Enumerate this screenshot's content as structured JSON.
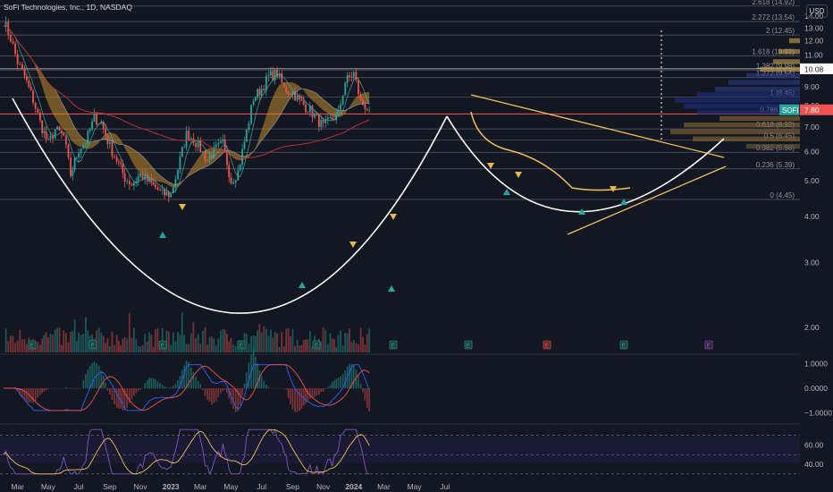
{
  "header": {
    "title": "SoFi Technologies, Inc., 1D, NASDAQ",
    "currency": "USD"
  },
  "colors": {
    "background": "#131722",
    "up": "#26a69a",
    "down": "#ef5350",
    "cup_line": "#ffffff",
    "trend_line": "#f0c05a",
    "fib_line": "#787b86",
    "sma_long": "#b5303a",
    "ema_ribbon": "#c28a2b"
  },
  "chart_data": [
    {
      "type": "candlestick",
      "title": "SoFi Technologies, Inc., 1D, NASDAQ",
      "x_tick_labels": [
        "Mar",
        "May",
        "Jul",
        "Sep",
        "Nov",
        "2023",
        "Mar",
        "May",
        "Jul",
        "Sep",
        "Nov",
        "2024",
        "Mar",
        "May",
        "Jul"
      ],
      "y_tick_labels": [
        "2.00",
        "3.00",
        "4.00",
        "5.00",
        "6.00",
        "7.00",
        "8.00",
        "9.00",
        "10.00",
        "11.00",
        "12.00",
        "13.00",
        "14.00"
      ],
      "ylim": [
        1.7,
        15.5
      ],
      "scale": "log",
      "fib_levels": [
        {
          "label": "0 (4.45)",
          "value": 4.45
        },
        {
          "label": "0.236 (5.39)",
          "value": 5.39
        },
        {
          "label": "0.382 (5.98)",
          "value": 5.98
        },
        {
          "label": "0.5 (6.45)",
          "value": 6.45
        },
        {
          "label": "0.618 (6.92)",
          "value": 6.92
        },
        {
          "label": "0.786 (7.6)",
          "value": 7.6
        },
        {
          "label": "1 (8.45)",
          "value": 8.45
        },
        {
          "label": "1.272 (9.54)",
          "value": 9.54
        },
        {
          "label": "1.382 (9.98)",
          "value": 9.98
        },
        {
          "label": "1.618 (10.92)",
          "value": 10.92
        },
        {
          "label": "2 (12.45)",
          "value": 12.45
        },
        {
          "label": "2.272 (13.54)",
          "value": 13.54
        },
        {
          "label": "2.618 (14.92)",
          "value": 14.92
        }
      ],
      "price_labels": [
        {
          "text": "10.08",
          "value": 10.08
        },
        {
          "text": "SOFI",
          "value": 7.8
        },
        {
          "text": "7.80",
          "value": 7.8
        }
      ],
      "price_series": [
        {
          "date": "2022-02-01",
          "close": 13.6
        },
        {
          "date": "2022-02-15",
          "close": 12.2
        },
        {
          "date": "2022-03-01",
          "close": 10.5
        },
        {
          "date": "2022-03-15",
          "close": 9.6
        },
        {
          "date": "2022-04-01",
          "close": 8.3
        },
        {
          "date": "2022-04-15",
          "close": 7.2
        },
        {
          "date": "2022-05-01",
          "close": 6.3
        },
        {
          "date": "2022-05-15",
          "close": 6.9
        },
        {
          "date": "2022-06-01",
          "close": 6.6
        },
        {
          "date": "2022-06-15",
          "close": 5.2
        },
        {
          "date": "2022-07-01",
          "close": 6.1
        },
        {
          "date": "2022-07-15",
          "close": 6.4
        },
        {
          "date": "2022-08-01",
          "close": 7.4
        },
        {
          "date": "2022-08-15",
          "close": 7.2
        },
        {
          "date": "2022-09-01",
          "close": 6.2
        },
        {
          "date": "2022-09-15",
          "close": 5.7
        },
        {
          "date": "2022-10-01",
          "close": 5.1
        },
        {
          "date": "2022-10-15",
          "close": 4.9
        },
        {
          "date": "2022-11-01",
          "close": 5.2
        },
        {
          "date": "2022-11-15",
          "close": 5.0
        },
        {
          "date": "2022-12-01",
          "close": 4.8
        },
        {
          "date": "2022-12-15",
          "close": 4.6
        },
        {
          "date": "2023-01-01",
          "close": 4.6
        },
        {
          "date": "2023-01-15",
          "close": 5.4
        },
        {
          "date": "2023-02-01",
          "close": 6.7
        },
        {
          "date": "2023-02-15",
          "close": 6.5
        },
        {
          "date": "2023-03-01",
          "close": 6.1
        },
        {
          "date": "2023-03-15",
          "close": 5.7
        },
        {
          "date": "2023-04-01",
          "close": 6.1
        },
        {
          "date": "2023-04-15",
          "close": 6.3
        },
        {
          "date": "2023-05-01",
          "close": 5.0
        },
        {
          "date": "2023-05-15",
          "close": 5.3
        },
        {
          "date": "2023-06-01",
          "close": 6.8
        },
        {
          "date": "2023-06-15",
          "close": 8.4
        },
        {
          "date": "2023-07-01",
          "close": 8.9
        },
        {
          "date": "2023-07-15",
          "close": 9.6
        },
        {
          "date": "2023-08-01",
          "close": 9.8
        },
        {
          "date": "2023-08-15",
          "close": 8.9
        },
        {
          "date": "2023-09-01",
          "close": 8.7
        },
        {
          "date": "2023-09-15",
          "close": 8.2
        },
        {
          "date": "2023-10-01",
          "close": 7.9
        },
        {
          "date": "2023-10-15",
          "close": 7.5
        },
        {
          "date": "2023-11-01",
          "close": 7.0
        },
        {
          "date": "2023-11-15",
          "close": 7.3
        },
        {
          "date": "2023-12-01",
          "close": 7.6
        },
        {
          "date": "2023-12-15",
          "close": 9.3
        },
        {
          "date": "2024-01-01",
          "close": 9.8
        },
        {
          "date": "2024-01-15",
          "close": 8.2
        },
        {
          "date": "2024-02-01",
          "close": 7.8
        }
      ],
      "volume_marker_labels": [
        "E",
        "E",
        "E",
        "E",
        "E",
        "E",
        "E",
        "E",
        "E",
        "E",
        "E",
        "E",
        "E",
        "E",
        "E"
      ]
    },
    {
      "type": "line",
      "indicator": "oscillator",
      "y_tick_labels": [
        "1.0000",
        "0.0000",
        "−1.0000"
      ],
      "ylim": [
        -1.3,
        1.3
      ]
    },
    {
      "type": "line",
      "indicator": "oscillator",
      "y_tick_labels": [
        "60.00",
        "40.00"
      ],
      "ylim": [
        28,
        78
      ]
    }
  ]
}
